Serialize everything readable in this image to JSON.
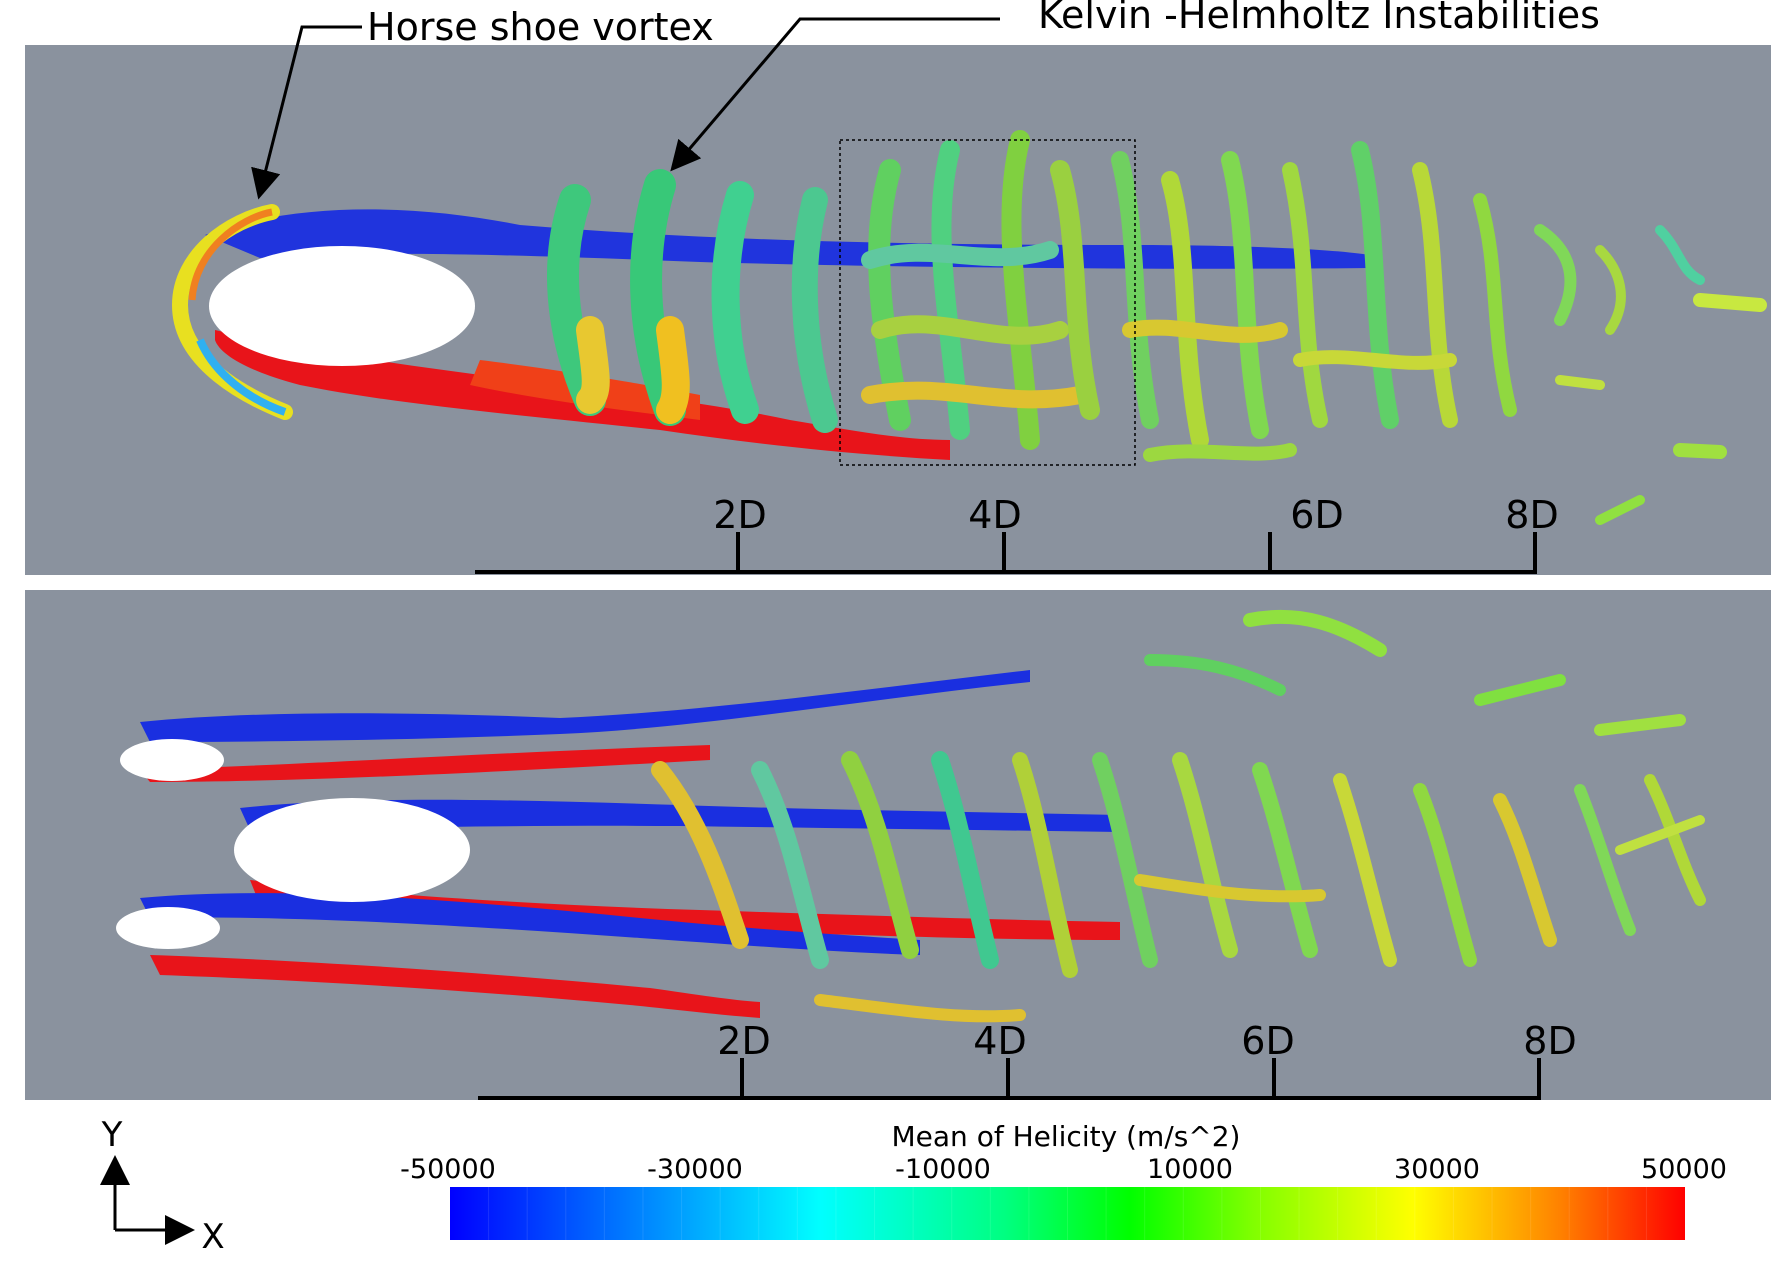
{
  "annotations": {
    "horseshoe": "Horse shoe vortex",
    "kelvin": "Kelvin -Helmholtz Instabilities"
  },
  "panels": [
    {
      "name": "single-body-wake",
      "scale_ticks": [
        "2D",
        "4D",
        "6D",
        "8D"
      ]
    },
    {
      "name": "three-body-wake",
      "scale_ticks": [
        "2D",
        "4D",
        "6D",
        "8D"
      ]
    }
  ],
  "axes": {
    "y": "Y",
    "x": "X"
  },
  "colorbar": {
    "title": "Mean of Helicity (m/s^2)",
    "ticks": [
      "-50000",
      "-30000",
      "-10000",
      "10000",
      "30000",
      "50000"
    ],
    "min": -50000,
    "max": 50000,
    "colormap": [
      "#0000ff",
      "#0080ff",
      "#00ffff",
      "#00ff80",
      "#00ff00",
      "#80ff00",
      "#ffff00",
      "#ff8000",
      "#ff0000"
    ]
  },
  "colors": {
    "background": "#8a929e",
    "body": "#ffffff",
    "negative": "#1a2fe0",
    "positive": "#e8141a"
  }
}
